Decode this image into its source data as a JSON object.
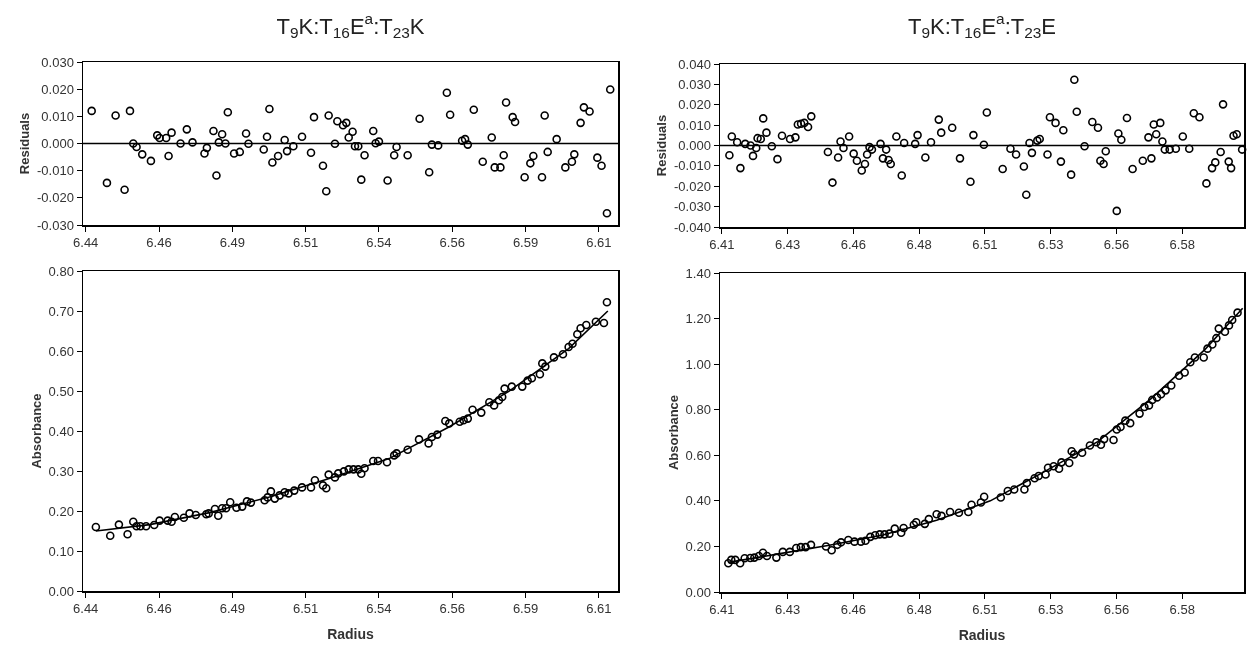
{
  "chart_data": [
    {
      "type": "scatter",
      "title": "T$_{9}$K:T$_{16}$E$^{a}$:T$_{23}$K",
      "ylabel": "Residuals",
      "xlim": [
        6.4377,
        6.6165
      ],
      "ylim": [
        -0.03,
        0.03
      ],
      "xticks": [
        {
          "value": 6.4386,
          "label": "6.44"
        },
        {
          "value": 6.4631,
          "label": "6.46"
        },
        {
          "value": 6.4876,
          "label": "6.49"
        },
        {
          "value": 6.5121,
          "label": "6.51"
        },
        {
          "value": 6.5366,
          "label": "6.54"
        },
        {
          "value": 6.5611,
          "label": "6.56"
        },
        {
          "value": 6.5856,
          "label": "6.59"
        },
        {
          "value": 6.6101,
          "label": "6.61"
        }
      ],
      "yticks": [
        {
          "value": -0.03,
          "label": "-0.030"
        },
        {
          "value": -0.02,
          "label": "-0.020"
        },
        {
          "value": -0.01,
          "label": "-0.010"
        },
        {
          "value": 0,
          "label": "0.000"
        },
        {
          "value": 0.01,
          "label": "0.010"
        },
        {
          "value": 0.02,
          "label": "0.020"
        },
        {
          "value": 0.03,
          "label": "0.030"
        }
      ],
      "ref_lines": [
        {
          "axis": "y",
          "value": 0,
          "color": "#000000"
        }
      ],
      "series": [
        {
          "type": "scatter",
          "marker": "circle",
          "color": "#000000",
          "x": [
            6.4406,
            6.4457,
            6.4486,
            6.4516,
            6.4534,
            6.4545,
            6.4556,
            6.4575,
            6.4604,
            6.4625,
            6.4633,
            6.4655,
            6.4663,
            6.4673,
            6.4703,
            6.4724,
            6.4743,
            6.4783,
            6.4791,
            6.4813,
            6.4823,
            6.4831,
            6.4842,
            6.4853,
            6.4861,
            6.4882,
            6.4901,
            6.4922,
            6.493,
            6.4981,
            6.4992,
            6.5,
            6.501,
            6.5029,
            6.5051,
            6.5059,
            6.508,
            6.5109,
            6.5139,
            6.5149,
            6.5179,
            6.519,
            6.5198,
            6.5219,
            6.5227,
            6.5246,
            6.5257,
            6.5265,
            6.5278,
            6.5286,
            6.5297,
            6.5307,
            6.5318,
            6.5347,
            6.5355,
            6.5366,
            6.5395,
            6.5417,
            6.5425,
            6.5462,
            6.5502,
            6.5534,
            6.5543,
            6.5564,
            6.5593,
            6.5604,
            6.5644,
            6.5654,
            6.5663,
            6.5683,
            6.5713,
            6.5743,
            6.5753,
            6.5772,
            6.5783,
            6.5791,
            6.5813,
            6.5821,
            6.5853,
            6.5872,
            6.5882,
            6.5911,
            6.592,
            6.593,
            6.596,
            6.5989,
            6.6011,
            6.6019,
            6.604,
            6.6051,
            6.607,
            6.6096,
            6.611,
            6.6128,
            6.6139
          ],
          "values": [
            0.012,
            -0.0145,
            0.0103,
            -0.017,
            0.012,
            0,
            -0.0013,
            -0.004,
            -0.0064,
            0.003,
            0.002,
            0.002,
            -0.0046,
            0.004,
            0,
            0.0052,
            0.0004,
            -0.0037,
            -0.0016,
            0.0046,
            -0.0118,
            0.0004,
            0.0034,
            0,
            0.0115,
            -0.0037,
            -0.0031,
            0.0037,
            -0.0001,
            -0.0022,
            0.0025,
            0.0127,
            -0.007,
            -0.0046,
            0.0013,
            -0.0028,
            -0.001,
            0.0025,
            -0.0034,
            0.0097,
            -0.0082,
            -0.0176,
            0.0103,
            -0.0001,
            0.0082,
            0.0067,
            0.0076,
            0.0022,
            0.0043,
            -0.001,
            -0.001,
            -0.0133,
            -0.0043,
            0.0046,
            0.0001,
            0.0007,
            -0.0136,
            -0.0043,
            -0.0013,
            -0.0043,
            0.0091,
            -0.0106,
            -0.0004,
            -0.0007,
            0.0187,
            0.0106,
            0.001,
            0.0016,
            -0.0004,
            0.0124,
            -0.0067,
            0.0022,
            -0.0088,
            -0.0088,
            -0.0043,
            0.0151,
            0.0097,
            0.0079,
            -0.0124,
            -0.0073,
            -0.0046,
            -0.0124,
            0.0103,
            -0.0031,
            0.0016,
            -0.0088,
            -0.0067,
            -0.004,
            0.0076,
            0.0133,
            0.0118,
            -0.0052,
            -0.0082,
            -0.0257,
            0.0199
          ]
        }
      ]
    },
    {
      "type": "scatter",
      "title": "T$_{9}$K:T$_{16}$E$^{a}$:T$_{23}$E",
      "ylabel": "Residuals",
      "xlim": [
        6.4093,
        6.6045
      ],
      "ylim": [
        -0.04,
        0.04
      ],
      "xticks": [
        {
          "value": 6.41,
          "label": "6.41"
        },
        {
          "value": 6.4345,
          "label": "6.43"
        },
        {
          "value": 6.459,
          "label": "6.46"
        },
        {
          "value": 6.4835,
          "label": "6.48"
        },
        {
          "value": 6.508,
          "label": "6.51"
        },
        {
          "value": 6.5325,
          "label": "6.53"
        },
        {
          "value": 6.557,
          "label": "6.56"
        },
        {
          "value": 6.5815,
          "label": "6.58"
        }
      ],
      "yticks": [
        {
          "value": -0.04,
          "label": "-0.040"
        },
        {
          "value": -0.03,
          "label": "-0.030"
        },
        {
          "value": -0.02,
          "label": "-0.020"
        },
        {
          "value": -0.01,
          "label": "-0.010"
        },
        {
          "value": 0,
          "label": "0.000"
        },
        {
          "value": 0.01,
          "label": "0.010"
        },
        {
          "value": 0.02,
          "label": "0.020"
        },
        {
          "value": 0.03,
          "label": "0.030"
        },
        {
          "value": 0.04,
          "label": "0.040"
        }
      ],
      "ref_lines": [
        {
          "axis": "y",
          "value": 0,
          "color": "#000000"
        }
      ],
      "series": [
        {
          "type": "scatter",
          "marker": "circle",
          "color": "#000000",
          "x": [
            6.4128,
            6.4137,
            6.4157,
            6.4169,
            6.4187,
            6.4207,
            6.4216,
            6.4228,
            6.4233,
            6.4245,
            6.4254,
            6.4266,
            6.4286,
            6.4307,
            6.4324,
            6.4354,
            6.4374,
            6.4383,
            6.4395,
            6.4407,
            6.4421,
            6.4433,
            6.4495,
            6.4512,
            6.4533,
            6.4542,
            6.4553,
            6.4574,
            6.4591,
            6.4603,
            6.4621,
            6.4633,
            6.4641,
            6.465,
            6.4659,
            6.4691,
            6.47,
            6.4712,
            6.4721,
            6.4729,
            6.475,
            6.477,
            6.4779,
            6.482,
            6.4829,
            6.4858,
            6.4879,
            6.4908,
            6.4917,
            6.4958,
            6.4987,
            6.5026,
            6.5037,
            6.5076,
            6.5087,
            6.5146,
            6.5175,
            6.5196,
            6.5225,
            6.5234,
            6.5246,
            6.5255,
            6.5275,
            6.5284,
            6.5313,
            6.5322,
            6.5343,
            6.5363,
            6.5372,
            6.5401,
            6.5413,
            6.5422,
            6.5451,
            6.548,
            6.5501,
            6.551,
            6.5522,
            6.553,
            6.5571,
            6.5577,
            6.5588,
            6.5609,
            6.563,
            6.5668,
            6.5689,
            6.57,
            6.5709,
            6.5718,
            6.5733,
            6.5741,
            6.575,
            6.5768,
            6.5791,
            6.5817,
            6.5841,
            6.5858,
            6.5879,
            6.5905,
            6.5926,
            6.5938,
            6.5958,
            6.5967,
            6.5988,
            6.5997,
            6.6006,
            6.6018,
            6.6038
          ],
          "values": [
            -0.0048,
            0.0044,
            0.0016,
            -0.0111,
            0.0008,
            0,
            -0.0051,
            -0.0012,
            0.0036,
            0.0032,
            0.0133,
            0.0063,
            -0.0004,
            -0.0067,
            0.0048,
            0.0032,
            0.004,
            0.0103,
            0.0107,
            0.0111,
            0.0091,
            0.0143,
            -0.0032,
            -0.0182,
            -0.0059,
            0.002,
            -0.0012,
            0.0044,
            -0.004,
            -0.0075,
            -0.0123,
            -0.0091,
            -0.0044,
            -0.0008,
            -0.002,
            0.0008,
            -0.0063,
            -0.002,
            -0.0071,
            -0.0091,
            0.0044,
            -0.0147,
            0.0012,
            0.0008,
            0.0051,
            -0.0059,
            0.0016,
            0.0127,
            0.0063,
            0.0087,
            -0.0063,
            -0.0178,
            0.0051,
            0.0004,
            0.0162,
            -0.0115,
            -0.0016,
            -0.0044,
            -0.0103,
            -0.0242,
            0.0012,
            -0.0036,
            0.0024,
            0.0032,
            -0.0044,
            0.0139,
            0.0111,
            -0.0079,
            0.0075,
            -0.0143,
            0.0323,
            0.0166,
            -0.0004,
            0.0115,
            0.0087,
            -0.0075,
            -0.0091,
            -0.0028,
            -0.0321,
            0.0059,
            0.0028,
            0.0135,
            -0.0115,
            -0.0075,
            0.004,
            -0.0063,
            0.0103,
            0.0055,
            0.0111,
            0.002,
            -0.002,
            -0.002,
            -0.0016,
            0.0044,
            -0.0016,
            0.0158,
            0.0139,
            -0.0186,
            -0.0111,
            -0.0083,
            -0.0032,
            0.0202,
            -0.0079,
            -0.0111,
            0.0048,
            0.0055,
            -0.002
          ]
        }
      ]
    },
    {
      "type": "scatter",
      "xlabel": "Radius",
      "ylabel": "Absorbance",
      "xlim": [
        6.4377,
        6.6165
      ],
      "ylim": [
        0,
        0.8
      ],
      "xticks": [
        {
          "value": 6.4386,
          "label": "6.44"
        },
        {
          "value": 6.4631,
          "label": "6.46"
        },
        {
          "value": 6.4876,
          "label": "6.49"
        },
        {
          "value": 6.5121,
          "label": "6.51"
        },
        {
          "value": 6.5366,
          "label": "6.54"
        },
        {
          "value": 6.5611,
          "label": "6.56"
        },
        {
          "value": 6.5856,
          "label": "6.59"
        },
        {
          "value": 6.6101,
          "label": "6.61"
        }
      ],
      "yticks": [
        {
          "value": 0,
          "label": "0.00"
        },
        {
          "value": 0.1,
          "label": "0.10"
        },
        {
          "value": 0.2,
          "label": "0.20"
        },
        {
          "value": 0.3,
          "label": "0.30"
        },
        {
          "value": 0.4,
          "label": "0.40"
        },
        {
          "value": 0.5,
          "label": "0.50"
        },
        {
          "value": 0.6,
          "label": "0.60"
        },
        {
          "value": 0.7,
          "label": "0.70"
        },
        {
          "value": 0.8,
          "label": "0.80"
        }
      ],
      "series": [
        {
          "type": "scatter",
          "marker": "circle",
          "color": "#000000",
          "x": [
            6.442,
            6.4468,
            6.4497,
            6.4526,
            6.4545,
            6.4556,
            6.4569,
            6.4588,
            6.4615,
            6.4633,
            6.466,
            6.4673,
            6.4684,
            6.4714,
            6.4733,
            6.4754,
            6.4789,
            6.4797,
            6.4818,
            6.4829,
            6.4842,
            6.4855,
            6.4869,
            6.489,
            6.4909,
            6.4925,
            6.4938,
            6.4984,
            6.4994,
            6.5005,
            6.5018,
            6.5034,
            6.5051,
            6.5064,
            6.5083,
            6.5109,
            6.5139,
            6.5152,
            6.5179,
            6.519,
            6.5198,
            6.5219,
            6.523,
            6.5249,
            6.5265,
            6.5281,
            6.5297,
            6.5307,
            6.5318,
            6.5347,
            6.5363,
            6.5393,
            6.5417,
            6.5425,
            6.5462,
            6.55,
            6.5532,
            6.5543,
            6.5561,
            6.5588,
            6.5601,
            6.5636,
            6.5649,
            6.5663,
            6.5679,
            6.5708,
            6.5735,
            6.5751,
            6.5767,
            6.5778,
            6.5786,
            6.581,
            6.5845,
            6.5863,
            6.5877,
            6.5904,
            6.5912,
            6.5922,
            6.5951,
            6.5981,
            6.6,
            6.6013,
            6.6029,
            6.604,
            6.6059,
            6.6091,
            6.6118,
            6.6128
          ],
          "values": [
            0.16,
            0.138,
            0.166,
            0.142,
            0.173,
            0.162,
            0.162,
            0.162,
            0.165,
            0.176,
            0.176,
            0.173,
            0.185,
            0.183,
            0.194,
            0.19,
            0.192,
            0.194,
            0.205,
            0.188,
            0.207,
            0.207,
            0.222,
            0.208,
            0.211,
            0.224,
            0.221,
            0.227,
            0.234,
            0.249,
            0.231,
            0.239,
            0.247,
            0.244,
            0.251,
            0.259,
            0.259,
            0.277,
            0.264,
            0.257,
            0.291,
            0.284,
            0.294,
            0.299,
            0.304,
            0.304,
            0.304,
            0.293,
            0.307,
            0.325,
            0.325,
            0.322,
            0.339,
            0.344,
            0.353,
            0.379,
            0.369,
            0.385,
            0.391,
            0.425,
            0.419,
            0.423,
            0.427,
            0.431,
            0.453,
            0.446,
            0.472,
            0.464,
            0.477,
            0.485,
            0.506,
            0.511,
            0.511,
            0.526,
            0.532,
            0.542,
            0.569,
            0.561,
            0.584,
            0.592,
            0.61,
            0.618,
            0.642,
            0.657,
            0.665,
            0.673,
            0.67,
            0.722
          ]
        },
        {
          "type": "line",
          "marker": "none",
          "color": "#000000",
          "x": [
            6.442,
            6.46,
            6.48,
            6.5,
            6.52,
            6.54,
            6.56,
            6.58,
            6.6,
            6.6131
          ],
          "values": [
            0.15,
            0.166,
            0.196,
            0.235,
            0.281,
            0.331,
            0.41,
            0.499,
            0.606,
            0.7
          ]
        }
      ]
    },
    {
      "type": "scatter",
      "xlabel": "Radius",
      "ylabel": "Absorbance",
      "xlim": [
        6.4093,
        6.6045
      ],
      "ylim": [
        0,
        1.4
      ],
      "xticks": [
        {
          "value": 6.41,
          "label": "6.41"
        },
        {
          "value": 6.4345,
          "label": "6.43"
        },
        {
          "value": 6.459,
          "label": "6.46"
        },
        {
          "value": 6.4835,
          "label": "6.48"
        },
        {
          "value": 6.508,
          "label": "6.51"
        },
        {
          "value": 6.5325,
          "label": "6.53"
        },
        {
          "value": 6.557,
          "label": "6.56"
        },
        {
          "value": 6.5815,
          "label": "6.58"
        }
      ],
      "yticks": [
        {
          "value": 0,
          "label": "0.00"
        },
        {
          "value": 0.2,
          "label": "0.20"
        },
        {
          "value": 0.4,
          "label": "0.40"
        },
        {
          "value": 0.6,
          "label": "0.60"
        },
        {
          "value": 0.8,
          "label": "0.80"
        },
        {
          "value": 1,
          "label": "1.00"
        },
        {
          "value": 1.2,
          "label": "1.20"
        },
        {
          "value": 1.4,
          "label": "1.40"
        }
      ],
      "series": [
        {
          "type": "scatter",
          "marker": "circle",
          "color": "#000000",
          "x": [
            6.4124,
            6.4135,
            6.415,
            6.4168,
            6.4185,
            6.4206,
            6.4221,
            6.4238,
            6.4253,
            6.4268,
            6.4303,
            6.4327,
            6.4353,
            6.4377,
            6.4394,
            6.4412,
            6.4432,
            6.4488,
            6.4509,
            6.453,
            6.4544,
            6.4571,
            6.4594,
            6.4618,
            6.4635,
            6.4653,
            6.4671,
            6.4688,
            6.4706,
            6.4724,
            6.4744,
            6.4768,
            6.4777,
            6.4815,
            6.4824,
            6.4856,
            6.4871,
            6.49,
            6.4918,
            6.495,
            6.4983,
            6.5018,
            6.503,
            6.5065,
            6.5077,
            6.5139,
            6.5165,
            6.5189,
            6.5227,
            6.5236,
            6.5265,
            6.528,
            6.5306,
            6.5315,
            6.5336,
            6.5356,
            6.5365,
            6.5394,
            6.5403,
            6.5412,
            6.5442,
            6.5471,
            6.5495,
            6.5512,
            6.5524,
            6.5559,
            6.5571,
            6.5585,
            6.5603,
            6.5621,
            6.5656,
            6.5674,
            6.5691,
            6.5703,
            6.5721,
            6.5736,
            6.5753,
            6.5774,
            6.5803,
            6.5824,
            6.5845,
            6.5862,
            6.5895,
            6.5909,
            6.5927,
            6.5942,
            6.5951,
            6.5974,
            6.5989,
            6.6001,
            6.6021
          ],
          "values": [
            0.126,
            0.141,
            0.141,
            0.126,
            0.148,
            0.149,
            0.151,
            0.158,
            0.172,
            0.158,
            0.151,
            0.176,
            0.176,
            0.193,
            0.197,
            0.197,
            0.207,
            0.2,
            0.183,
            0.207,
            0.218,
            0.228,
            0.221,
            0.221,
            0.225,
            0.242,
            0.249,
            0.253,
            0.253,
            0.256,
            0.278,
            0.26,
            0.281,
            0.295,
            0.306,
            0.299,
            0.32,
            0.341,
            0.334,
            0.351,
            0.348,
            0.351,
            0.383,
            0.393,
            0.418,
            0.415,
            0.443,
            0.45,
            0.45,
            0.478,
            0.499,
            0.509,
            0.516,
            0.545,
            0.552,
            0.541,
            0.569,
            0.566,
            0.618,
            0.604,
            0.611,
            0.643,
            0.657,
            0.646,
            0.671,
            0.667,
            0.713,
            0.724,
            0.752,
            0.741,
            0.783,
            0.812,
            0.819,
            0.843,
            0.854,
            0.868,
            0.885,
            0.906,
            0.949,
            0.963,
            1.008,
            1.029,
            1.029,
            1.068,
            1.086,
            1.114,
            1.156,
            1.142,
            1.17,
            1.194,
            1.226
          ]
        },
        {
          "type": "line",
          "marker": "none",
          "color": "#000000",
          "x": [
            6.4124,
            6.43,
            6.45,
            6.47,
            6.49,
            6.51,
            6.53,
            6.55,
            6.57,
            6.59,
            6.604
          ],
          "values": [
            0.13,
            0.165,
            0.205,
            0.25,
            0.315,
            0.4,
            0.527,
            0.66,
            0.85,
            1.065,
            1.245
          ]
        }
      ]
    }
  ]
}
